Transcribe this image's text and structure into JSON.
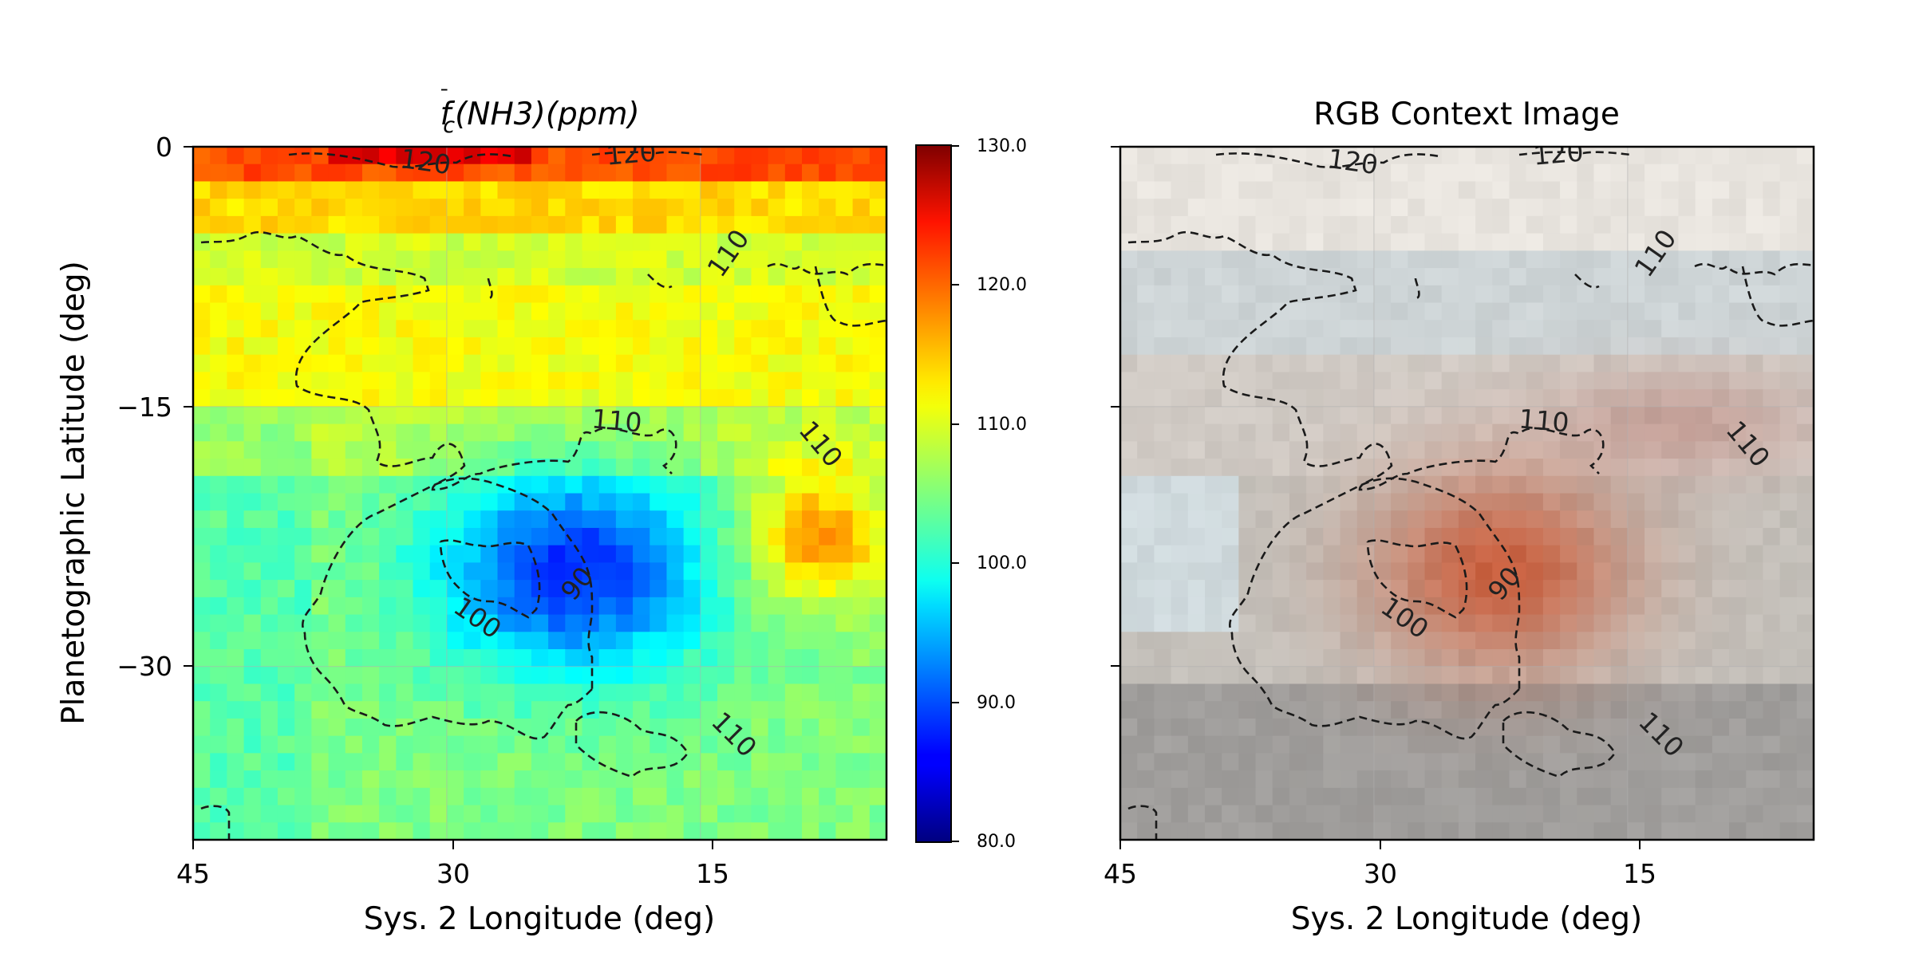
{
  "chart_data": [
    {
      "type": "heatmap",
      "title": "f̄c(NH3)(ppm)",
      "title_parts": {
        "f": "f",
        "bar": "¯",
        "sub": "c",
        "rest": "(NH3)(ppm)"
      },
      "xlabel": "Sys. 2 Longitude (deg)",
      "ylabel": "Planetographic Latitude (deg)",
      "xlim": [
        45,
        4
      ],
      "ylim": [
        -40,
        0
      ],
      "xticks": [
        "45",
        "30",
        "15"
      ],
      "yticks": [
        "0",
        "−15",
        "−30"
      ],
      "grid": true,
      "colormap": "jet",
      "colorbar": {
        "range": [
          80,
          130
        ],
        "ticks": [
          "130.0",
          "120.0",
          "110.0",
          "100.0",
          "90.0",
          "80.0"
        ]
      },
      "values_description_grid": {
        "background_ppm": 106,
        "minimum_ppm": 90,
        "minimum_center_lon_lat": [
          22.5,
          -24.5
        ],
        "warm_patch_ppm": 118,
        "warm_patch_center_lon_lat": [
          8,
          -22.5
        ],
        "top_band_ppm": 122
      },
      "contour_labels": [
        "120",
        "120",
        "110",
        "110",
        "110",
        "110",
        "100",
        "90"
      ]
    },
    {
      "type": "heatmap",
      "title": "RGB Context Image",
      "xlabel": "Sys. 2 Longitude (deg)",
      "xlim": [
        45,
        4
      ],
      "ylim": [
        -40,
        0
      ],
      "xticks": [
        "45",
        "30",
        "15"
      ],
      "grid": true,
      "contour_labels": [
        "120",
        "120",
        "110",
        "110",
        "110",
        "110",
        "100",
        "90"
      ]
    }
  ],
  "colors": {
    "rgb_bands": [
      "#e8e4dd",
      "#ccd1d3",
      "#c9c3bb",
      "#b8b3ac",
      "#9e9b98"
    ],
    "grs_color": "#c9603f",
    "contour": "#1a1a1a"
  }
}
